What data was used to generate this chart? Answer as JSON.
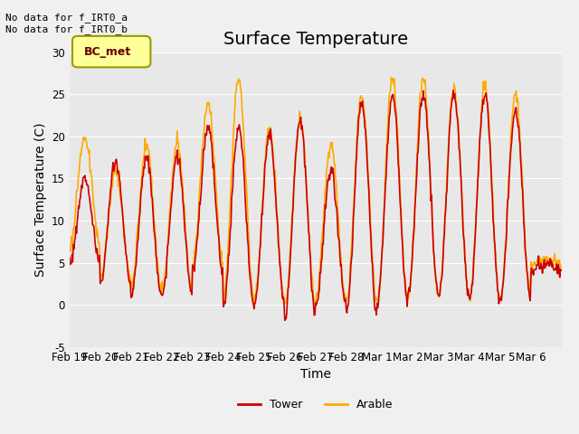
{
  "title": "Surface Temperature",
  "xlabel": "Time",
  "ylabel": "Surface Temperature (C)",
  "ylim": [
    -5,
    30
  ],
  "plot_bg_color": "#e8e8e8",
  "fig_bg_color": "#f0f0f0",
  "annotation_text": "No data for f_IRT0_a\nNo data for f_IRT0_b",
  "legend_box_label": "BC_met",
  "legend_box_color": "#ffff99",
  "legend_box_border": "#999900",
  "tick_labels": [
    "Feb 19",
    "Feb 20",
    "Feb 21",
    "Feb 22",
    "Feb 23",
    "Feb 24",
    "Feb 25",
    "Feb 26",
    "Feb 27",
    "Feb 28",
    "Mar 1",
    "Mar 2",
    "Mar 3",
    "Mar 4",
    "Mar 5",
    "Mar 6"
  ],
  "ytick_labels": [
    "-5",
    "0",
    "5",
    "10",
    "15",
    "20",
    "25",
    "30"
  ],
  "ytick_vals": [
    -5,
    0,
    5,
    10,
    15,
    20,
    25,
    30
  ],
  "tower_color": "#cc0000",
  "arable_color": "#ffaa00",
  "line_width": 1.2,
  "title_fontsize": 14,
  "axis_fontsize": 10,
  "tick_fontsize": 8.5,
  "daily_mins_tower": [
    5,
    2.5,
    1,
    1,
    4,
    0,
    0,
    -1,
    0,
    -1,
    0,
    1,
    1,
    0.5,
    0.5,
    4
  ],
  "daily_maxs_tower": [
    15,
    17,
    17.5,
    17.5,
    21,
    21,
    20,
    22,
    16,
    24,
    25,
    25,
    25,
    25,
    23,
    5
  ],
  "daily_mins_arable": [
    7,
    3,
    2,
    1.5,
    5,
    1,
    0.5,
    0,
    0.5,
    0.5,
    0.5,
    1,
    1,
    0.5,
    0.5,
    5
  ],
  "daily_maxs_arable": [
    20,
    16,
    19,
    19,
    24,
    27,
    21,
    22,
    19,
    25,
    27,
    27,
    26,
    26,
    25,
    5.5
  ],
  "n_days": 16,
  "pts_per_day": 48
}
